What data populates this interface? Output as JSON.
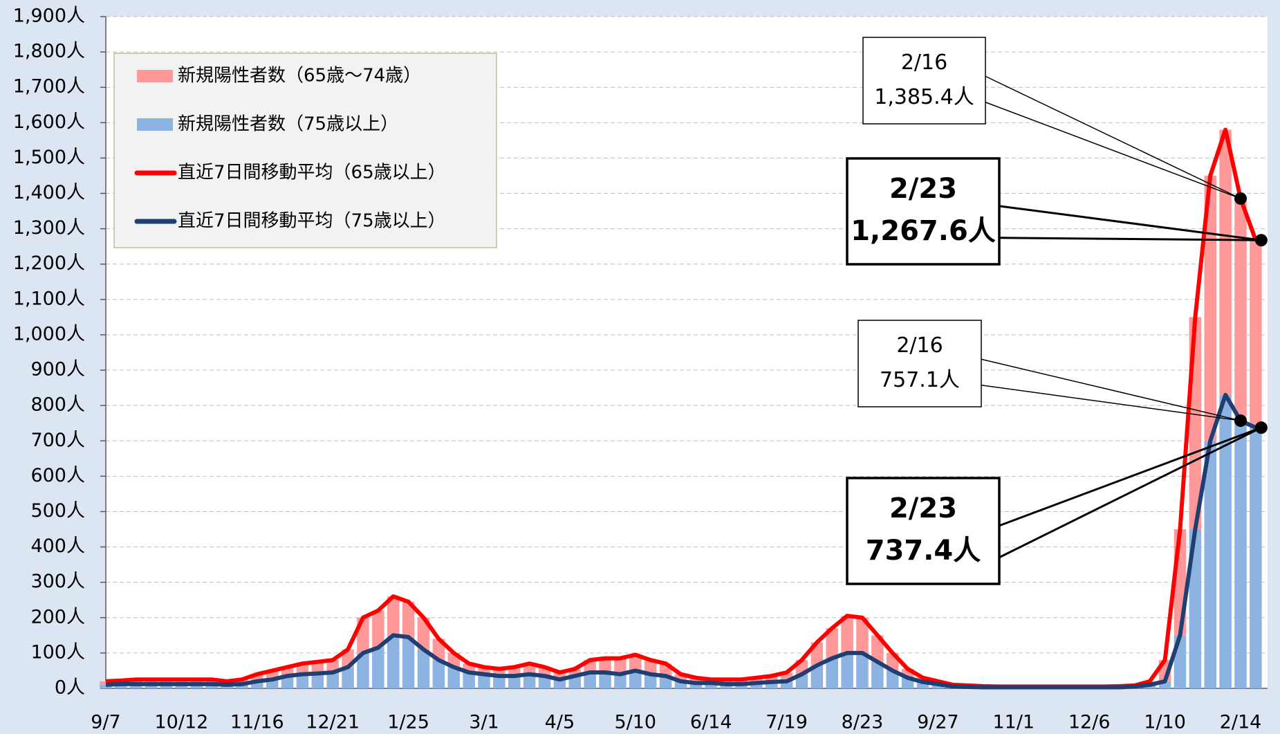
{
  "chart_data": {
    "type": "bar_line",
    "categories": [
      "9/7",
      null,
      null,
      null,
      null,
      "10/12",
      null,
      null,
      null,
      null,
      "11/16",
      null,
      null,
      null,
      null,
      "12/21",
      null,
      null,
      null,
      null,
      "1/25",
      null,
      null,
      null,
      null,
      "3/1",
      null,
      null,
      null,
      null,
      "4/5",
      null,
      null,
      null,
      null,
      "5/10",
      null,
      null,
      null,
      null,
      "6/14",
      null,
      null,
      null,
      null,
      "7/19",
      null,
      null,
      null,
      null,
      "8/23",
      null,
      null,
      null,
      null,
      "9/27",
      null,
      null,
      null,
      null,
      "11/1",
      null,
      null,
      null,
      null,
      "12/6",
      null,
      null,
      null,
      null,
      "1/10",
      null,
      null,
      null,
      null,
      "2/14",
      null
    ],
    "series": [
      {
        "name": "新規陽性者数（65歳～74歳）",
        "kind": "bar",
        "color": "#ff9999",
        "values": [
          10,
          10,
          13,
          13,
          13,
          13,
          13,
          13,
          10,
          13,
          20,
          25,
          25,
          30,
          33,
          35,
          50,
          100,
          105,
          110,
          100,
          90,
          60,
          40,
          25,
          20,
          20,
          25,
          30,
          25,
          20,
          20,
          35,
          40,
          45,
          45,
          40,
          35,
          20,
          15,
          10,
          13,
          13,
          15,
          17,
          25,
          40,
          65,
          85,
          105,
          100,
          75,
          50,
          25,
          12,
          8,
          5,
          4,
          3,
          2,
          2,
          2,
          2,
          2,
          2,
          2,
          2,
          3,
          3,
          10,
          60,
          300,
          600,
          750,
          750,
          628,
          530
        ]
      },
      {
        "name": "新規陽性者数（75歳以上）",
        "kind": "bar",
        "color": "#8db3e2",
        "values": [
          10,
          12,
          12,
          12,
          12,
          12,
          12,
          12,
          10,
          12,
          20,
          25,
          35,
          40,
          42,
          45,
          60,
          100,
          115,
          150,
          145,
          110,
          80,
          60,
          45,
          40,
          35,
          35,
          40,
          35,
          25,
          35,
          45,
          45,
          40,
          50,
          40,
          35,
          20,
          15,
          15,
          12,
          12,
          15,
          18,
          20,
          40,
          65,
          85,
          100,
          100,
          75,
          50,
          30,
          18,
          12,
          5,
          4,
          3,
          3,
          3,
          3,
          3,
          3,
          3,
          3,
          3,
          3,
          5,
          10,
          20,
          150,
          450,
          700,
          830,
          757,
          737
        ]
      },
      {
        "name": "直近7日間移動平均（65歳以上）",
        "kind": "line",
        "color": "#ff0000",
        "values": [
          20,
          22,
          25,
          25,
          25,
          25,
          25,
          25,
          20,
          25,
          40,
          50,
          60,
          70,
          75,
          80,
          110,
          200,
          220,
          260,
          245,
          200,
          140,
          100,
          70,
          60,
          55,
          60,
          70,
          60,
          45,
          55,
          80,
          85,
          85,
          95,
          80,
          70,
          40,
          30,
          25,
          25,
          25,
          30,
          35,
          45,
          80,
          130,
          170,
          205,
          200,
          150,
          100,
          55,
          30,
          20,
          10,
          8,
          6,
          5,
          5,
          5,
          5,
          5,
          5,
          5,
          5,
          6,
          8,
          20,
          80,
          450,
          1050,
          1450,
          1580,
          1385.4,
          1267.6
        ]
      },
      {
        "name": "直近7日間移動平均（75歳以上）",
        "kind": "line",
        "color": "#1f3f73",
        "values": [
          10,
          12,
          12,
          12,
          12,
          12,
          12,
          12,
          10,
          12,
          20,
          25,
          35,
          40,
          42,
          45,
          60,
          100,
          115,
          150,
          145,
          110,
          80,
          60,
          45,
          40,
          35,
          35,
          40,
          35,
          25,
          35,
          45,
          45,
          40,
          50,
          40,
          35,
          20,
          15,
          15,
          12,
          12,
          15,
          18,
          20,
          40,
          65,
          85,
          100,
          100,
          75,
          50,
          30,
          18,
          12,
          5,
          4,
          3,
          3,
          3,
          3,
          3,
          3,
          3,
          3,
          3,
          3,
          5,
          10,
          20,
          150,
          450,
          700,
          830,
          757.1,
          737.4
        ]
      }
    ],
    "ylim": [
      0,
      1900
    ],
    "yticks": [
      {
        "value": 0,
        "label": "0人"
      },
      {
        "value": 100,
        "label": "100人"
      },
      {
        "value": 200,
        "label": "200人"
      },
      {
        "value": 300,
        "label": "300人"
      },
      {
        "value": 400,
        "label": "400人"
      },
      {
        "value": 500,
        "label": "500人"
      },
      {
        "value": 600,
        "label": "600人"
      },
      {
        "value": 700,
        "label": "700人"
      },
      {
        "value": 800,
        "label": "800人"
      },
      {
        "value": 900,
        "label": "900人"
      },
      {
        "value": 1000,
        "label": "1,000人"
      },
      {
        "value": 1100,
        "label": "1,100人"
      },
      {
        "value": 1200,
        "label": "1,200人"
      },
      {
        "value": 1300,
        "label": "1,300人"
      },
      {
        "value": 1400,
        "label": "1,400人"
      },
      {
        "value": 1500,
        "label": "1,500人"
      },
      {
        "value": 1600,
        "label": "1,600人"
      },
      {
        "value": 1700,
        "label": "1,700人"
      },
      {
        "value": 1800,
        "label": "1,800人"
      },
      {
        "value": 1900,
        "label": "1,900人"
      }
    ],
    "grid": true,
    "legend": "upper left",
    "annotations": [
      {
        "date": "2/16",
        "label": "1,385.4人"
      },
      {
        "date": "2/23",
        "label": "1,267.6人"
      },
      {
        "date": "2/16",
        "label": "757.1人"
      },
      {
        "date": "2/23",
        "label": "737.4人"
      }
    ]
  }
}
